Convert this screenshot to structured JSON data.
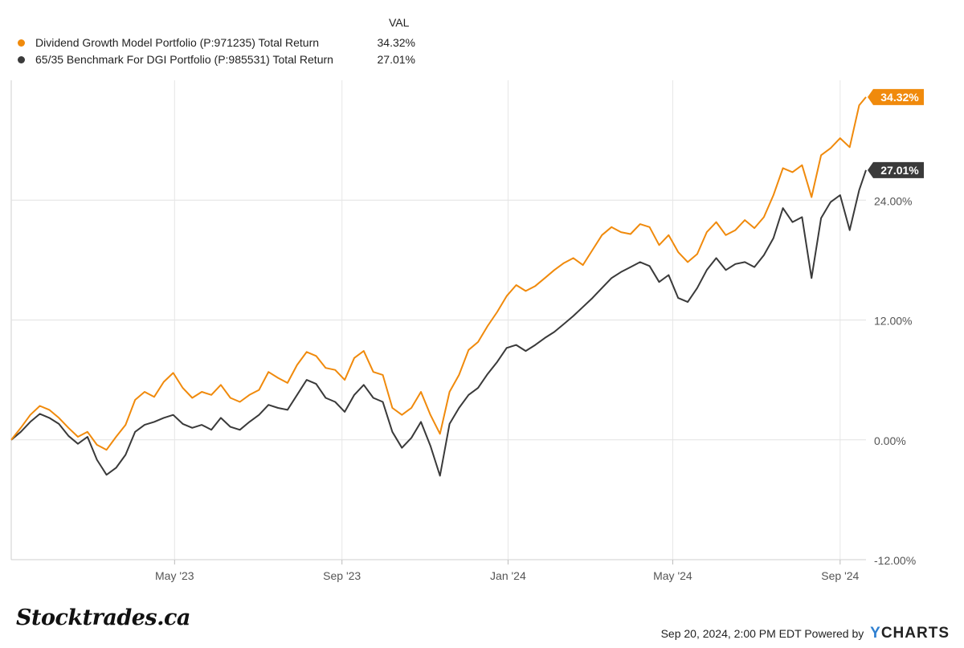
{
  "legend": {
    "header": "VAL",
    "series": [
      {
        "name": "Dividend Growth Model Portfolio (P:971235) Total Return",
        "value": "34.32%",
        "color": "#f08a0c"
      },
      {
        "name": "65/35 Benchmark For DGI Portfolio (P:985531) Total Return",
        "value": "27.01%",
        "color": "#3a3a3a"
      }
    ]
  },
  "chart_data": {
    "type": "line",
    "title": "",
    "xlabel": "",
    "ylabel": "",
    "x_start": "2023-01-01",
    "x_end": "2024-09-20",
    "ylim": [
      -12,
      36
    ],
    "yticks": [
      {
        "value": 24,
        "label": "24.00%"
      },
      {
        "value": 12,
        "label": "12.00%"
      },
      {
        "value": 0,
        "label": "0.00%"
      },
      {
        "value": -12,
        "label": "-12.00%"
      }
    ],
    "xticks": [
      {
        "date": "2023-05-01",
        "label": "May '23"
      },
      {
        "date": "2023-09-01",
        "label": "Sep '23"
      },
      {
        "date": "2024-01-01",
        "label": "Jan '24"
      },
      {
        "date": "2024-05-01",
        "label": "May '24"
      },
      {
        "date": "2024-09-01",
        "label": "Sep '24"
      }
    ],
    "series": [
      {
        "name": "Dividend Growth Model Portfolio (P:971235) Total Return",
        "color": "#f08a0c",
        "end_label": "34.32%",
        "points": [
          [
            "2023-01-01",
            0.0
          ],
          [
            "2023-01-08",
            1.2
          ],
          [
            "2023-01-15",
            2.5
          ],
          [
            "2023-01-22",
            3.4
          ],
          [
            "2023-01-29",
            3.0
          ],
          [
            "2023-02-05",
            2.2
          ],
          [
            "2023-02-12",
            1.2
          ],
          [
            "2023-02-19",
            0.3
          ],
          [
            "2023-02-26",
            0.8
          ],
          [
            "2023-03-05",
            -0.5
          ],
          [
            "2023-03-12",
            -1.0
          ],
          [
            "2023-03-19",
            0.3
          ],
          [
            "2023-03-26",
            1.5
          ],
          [
            "2023-04-02",
            4.0
          ],
          [
            "2023-04-09",
            4.8
          ],
          [
            "2023-04-16",
            4.3
          ],
          [
            "2023-04-23",
            5.8
          ],
          [
            "2023-04-30",
            6.7
          ],
          [
            "2023-05-07",
            5.2
          ],
          [
            "2023-05-14",
            4.2
          ],
          [
            "2023-05-21",
            4.8
          ],
          [
            "2023-05-28",
            4.5
          ],
          [
            "2023-06-04",
            5.5
          ],
          [
            "2023-06-11",
            4.2
          ],
          [
            "2023-06-18",
            3.8
          ],
          [
            "2023-06-25",
            4.5
          ],
          [
            "2023-07-02",
            5.0
          ],
          [
            "2023-07-09",
            6.8
          ],
          [
            "2023-07-16",
            6.2
          ],
          [
            "2023-07-23",
            5.7
          ],
          [
            "2023-07-30",
            7.5
          ],
          [
            "2023-08-06",
            8.8
          ],
          [
            "2023-08-13",
            8.4
          ],
          [
            "2023-08-20",
            7.2
          ],
          [
            "2023-08-27",
            7.0
          ],
          [
            "2023-09-03",
            6.0
          ],
          [
            "2023-09-10",
            8.2
          ],
          [
            "2023-09-17",
            8.9
          ],
          [
            "2023-09-24",
            6.8
          ],
          [
            "2023-10-01",
            6.5
          ],
          [
            "2023-10-08",
            3.2
          ],
          [
            "2023-10-15",
            2.5
          ],
          [
            "2023-10-22",
            3.2
          ],
          [
            "2023-10-29",
            4.8
          ],
          [
            "2023-11-05",
            2.5
          ],
          [
            "2023-11-12",
            0.6
          ],
          [
            "2023-11-19",
            4.8
          ],
          [
            "2023-11-26",
            6.5
          ],
          [
            "2023-12-03",
            9.0
          ],
          [
            "2023-12-10",
            9.8
          ],
          [
            "2023-12-17",
            11.4
          ],
          [
            "2023-12-24",
            12.8
          ],
          [
            "2023-12-31",
            14.4
          ],
          [
            "2024-01-07",
            15.5
          ],
          [
            "2024-01-14",
            14.9
          ],
          [
            "2024-01-21",
            15.4
          ],
          [
            "2024-01-28",
            16.2
          ],
          [
            "2024-02-04",
            17.0
          ],
          [
            "2024-02-11",
            17.7
          ],
          [
            "2024-02-18",
            18.2
          ],
          [
            "2024-02-25",
            17.5
          ],
          [
            "2024-03-03",
            19.0
          ],
          [
            "2024-03-10",
            20.5
          ],
          [
            "2024-03-17",
            21.3
          ],
          [
            "2024-03-24",
            20.8
          ],
          [
            "2024-03-31",
            20.6
          ],
          [
            "2024-04-07",
            21.6
          ],
          [
            "2024-04-14",
            21.3
          ],
          [
            "2024-04-21",
            19.5
          ],
          [
            "2024-04-28",
            20.5
          ],
          [
            "2024-05-05",
            18.8
          ],
          [
            "2024-05-12",
            17.8
          ],
          [
            "2024-05-19",
            18.6
          ],
          [
            "2024-05-26",
            20.8
          ],
          [
            "2024-06-02",
            21.8
          ],
          [
            "2024-06-09",
            20.5
          ],
          [
            "2024-06-16",
            21.0
          ],
          [
            "2024-06-23",
            22.0
          ],
          [
            "2024-06-30",
            21.2
          ],
          [
            "2024-07-07",
            22.3
          ],
          [
            "2024-07-14",
            24.5
          ],
          [
            "2024-07-21",
            27.2
          ],
          [
            "2024-07-28",
            26.8
          ],
          [
            "2024-08-04",
            27.5
          ],
          [
            "2024-08-11",
            24.3
          ],
          [
            "2024-08-18",
            28.5
          ],
          [
            "2024-08-25",
            29.2
          ],
          [
            "2024-09-01",
            30.2
          ],
          [
            "2024-09-08",
            29.3
          ],
          [
            "2024-09-15",
            33.5
          ],
          [
            "2024-09-20",
            34.32
          ]
        ]
      },
      {
        "name": "65/35 Benchmark For DGI Portfolio (P:985531) Total Return",
        "color": "#3a3a3a",
        "end_label": "27.01%",
        "points": [
          [
            "2023-01-01",
            0.0
          ],
          [
            "2023-01-08",
            0.8
          ],
          [
            "2023-01-15",
            1.8
          ],
          [
            "2023-01-22",
            2.6
          ],
          [
            "2023-01-29",
            2.2
          ],
          [
            "2023-02-05",
            1.6
          ],
          [
            "2023-02-12",
            0.4
          ],
          [
            "2023-02-19",
            -0.4
          ],
          [
            "2023-02-26",
            0.3
          ],
          [
            "2023-03-05",
            -2.0
          ],
          [
            "2023-03-12",
            -3.5
          ],
          [
            "2023-03-19",
            -2.8
          ],
          [
            "2023-03-26",
            -1.5
          ],
          [
            "2023-04-02",
            0.8
          ],
          [
            "2023-04-09",
            1.5
          ],
          [
            "2023-04-16",
            1.8
          ],
          [
            "2023-04-23",
            2.2
          ],
          [
            "2023-04-30",
            2.5
          ],
          [
            "2023-05-07",
            1.6
          ],
          [
            "2023-05-14",
            1.2
          ],
          [
            "2023-05-21",
            1.5
          ],
          [
            "2023-05-28",
            1.0
          ],
          [
            "2023-06-04",
            2.2
          ],
          [
            "2023-06-11",
            1.3
          ],
          [
            "2023-06-18",
            1.0
          ],
          [
            "2023-06-25",
            1.8
          ],
          [
            "2023-07-02",
            2.5
          ],
          [
            "2023-07-09",
            3.5
          ],
          [
            "2023-07-16",
            3.2
          ],
          [
            "2023-07-23",
            3.0
          ],
          [
            "2023-07-30",
            4.5
          ],
          [
            "2023-08-06",
            6.0
          ],
          [
            "2023-08-13",
            5.6
          ],
          [
            "2023-08-20",
            4.2
          ],
          [
            "2023-08-27",
            3.8
          ],
          [
            "2023-09-03",
            2.8
          ],
          [
            "2023-09-10",
            4.5
          ],
          [
            "2023-09-17",
            5.5
          ],
          [
            "2023-09-24",
            4.2
          ],
          [
            "2023-10-01",
            3.8
          ],
          [
            "2023-10-08",
            0.8
          ],
          [
            "2023-10-15",
            -0.8
          ],
          [
            "2023-10-22",
            0.2
          ],
          [
            "2023-10-29",
            1.8
          ],
          [
            "2023-11-05",
            -0.6
          ],
          [
            "2023-11-12",
            -3.6
          ],
          [
            "2023-11-19",
            1.6
          ],
          [
            "2023-11-26",
            3.2
          ],
          [
            "2023-12-03",
            4.5
          ],
          [
            "2023-12-10",
            5.2
          ],
          [
            "2023-12-17",
            6.6
          ],
          [
            "2023-12-24",
            7.8
          ],
          [
            "2023-12-31",
            9.2
          ],
          [
            "2024-01-07",
            9.5
          ],
          [
            "2024-01-14",
            8.9
          ],
          [
            "2024-01-21",
            9.5
          ],
          [
            "2024-01-28",
            10.2
          ],
          [
            "2024-02-04",
            10.8
          ],
          [
            "2024-02-11",
            11.6
          ],
          [
            "2024-02-18",
            12.4
          ],
          [
            "2024-02-25",
            13.3
          ],
          [
            "2024-03-03",
            14.2
          ],
          [
            "2024-03-10",
            15.2
          ],
          [
            "2024-03-17",
            16.2
          ],
          [
            "2024-03-24",
            16.8
          ],
          [
            "2024-03-31",
            17.3
          ],
          [
            "2024-04-07",
            17.8
          ],
          [
            "2024-04-14",
            17.4
          ],
          [
            "2024-04-21",
            15.8
          ],
          [
            "2024-04-28",
            16.5
          ],
          [
            "2024-05-05",
            14.2
          ],
          [
            "2024-05-12",
            13.8
          ],
          [
            "2024-05-19",
            15.2
          ],
          [
            "2024-05-26",
            17.0
          ],
          [
            "2024-06-02",
            18.2
          ],
          [
            "2024-06-09",
            17.0
          ],
          [
            "2024-06-16",
            17.6
          ],
          [
            "2024-06-23",
            17.8
          ],
          [
            "2024-06-30",
            17.3
          ],
          [
            "2024-07-07",
            18.5
          ],
          [
            "2024-07-14",
            20.2
          ],
          [
            "2024-07-21",
            23.2
          ],
          [
            "2024-07-28",
            21.8
          ],
          [
            "2024-08-04",
            22.3
          ],
          [
            "2024-08-11",
            16.2
          ],
          [
            "2024-08-18",
            22.2
          ],
          [
            "2024-08-25",
            23.8
          ],
          [
            "2024-09-01",
            24.5
          ],
          [
            "2024-09-08",
            21.0
          ],
          [
            "2024-09-15",
            25.0
          ],
          [
            "2024-09-20",
            27.01
          ]
        ]
      }
    ]
  },
  "brand": "Stocktrades.ca",
  "footer": {
    "timestamp": "Sep 20, 2024, 2:00 PM EDT Powered by",
    "logo_y": "Y",
    "logo_rest": "CHARTS"
  }
}
